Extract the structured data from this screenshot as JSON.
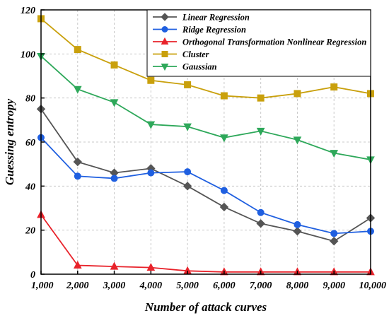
{
  "chart_data": {
    "type": "line",
    "title": "",
    "xlabel": "Number of attack curves",
    "ylabel": "Guessing entropy",
    "x": [
      1000,
      2000,
      3000,
      4000,
      5000,
      6000,
      7000,
      8000,
      9000,
      10000
    ],
    "x_tick_labels": [
      "1,000",
      "2,000",
      "3,000",
      "4,000",
      "5,000",
      "6,000",
      "7,000",
      "8,000",
      "9,000",
      "10,000"
    ],
    "xlim": [
      1000,
      10000
    ],
    "ylim": [
      0,
      120
    ],
    "y_ticks": [
      0,
      20,
      40,
      60,
      80,
      100,
      120
    ],
    "grid": true,
    "legend_position": "top-right",
    "series": [
      {
        "name": "Linear Regression",
        "color": "#555555",
        "marker": "diamond",
        "values": [
          75,
          51,
          46,
          48,
          40,
          30.5,
          23,
          19.5,
          15,
          25.5
        ]
      },
      {
        "name": "Ridge Regression",
        "color": "#1f5fe0",
        "marker": "circle",
        "values": [
          62,
          44.5,
          43.5,
          46,
          46.5,
          38,
          28,
          22.5,
          18.5,
          19.5
        ]
      },
      {
        "name": "Orthogonal Transformation Nonlinear Regression",
        "color": "#e8222a",
        "marker": "triangle-up",
        "values": [
          27,
          4,
          3.5,
          3,
          1.5,
          1,
          1,
          1,
          1,
          1
        ]
      },
      {
        "name": "Cluster",
        "color": "#c9a00c",
        "marker": "square",
        "values": [
          116,
          102,
          95,
          88,
          86,
          81,
          80,
          82,
          85,
          82
        ]
      },
      {
        "name": "Gaussian",
        "color": "#2ea85a",
        "marker": "triangle-down",
        "values": [
          99,
          84,
          78,
          68,
          67,
          62,
          65,
          61,
          55,
          52
        ]
      }
    ]
  }
}
